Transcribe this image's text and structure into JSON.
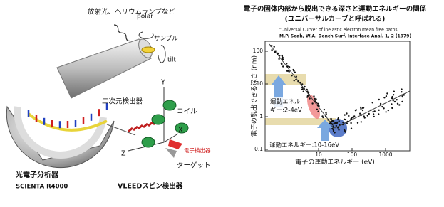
{
  "left": {
    "source": "放射光、ヘリウムランプなど",
    "polar": "polar",
    "sample": "サンプル",
    "tilt": "tilt",
    "detector2d": "二次元検出器",
    "axis_y": "Y",
    "coil": "コイル",
    "axis_x": "X",
    "axis_z": "Z",
    "electron_detector": "電子検出器",
    "target": "ターゲット",
    "analyzer": "光電子分析器",
    "analyzer_model": "SCIENTA R4000",
    "spin_detector": "VLEEDスピン検出器"
  },
  "right": {
    "title": "電子の固体内部から脱出できる深さと運動エネルギーの関係",
    "subtitle": "(ユニバーサルカーブと呼ばれる)",
    "citation": [
      "\"Universal Curve\" of inelastic electron mean free paths",
      "M.P. Seah, W.A. Dench Surf. Interface Anal. 1, 2 (1979)"
    ],
    "y_label": "電子の脱出できる深さ (nm)",
    "x_label": "電子の運動エネルギー (eV)",
    "yticks": [
      100,
      10,
      1,
      0.1
    ],
    "xticks": [
      10,
      100,
      1000
    ],
    "annotation_low": [
      "運動エネル",
      "ギー:2-4eV"
    ],
    "annotation_mid": "運動エネルギー:10-16eV"
  }
}
